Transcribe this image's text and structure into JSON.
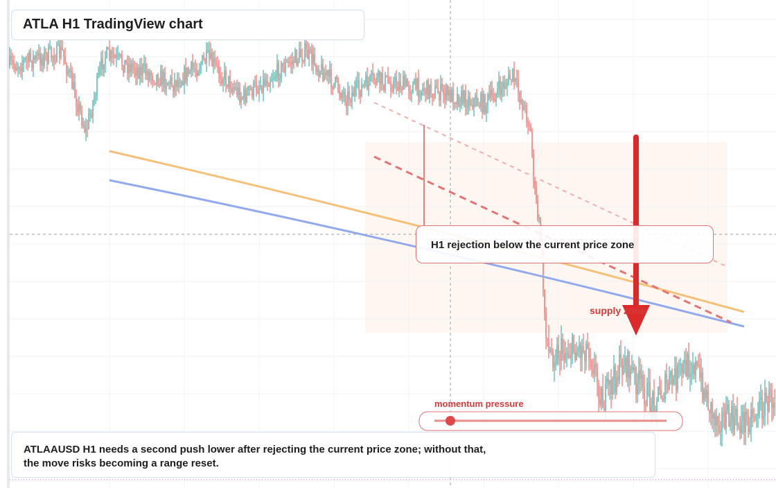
{
  "header": {
    "title": "ATLA H1 TradingView chart"
  },
  "annotations": {
    "zone_label": "H1 rejection below the current price zone",
    "supply": "supply zone",
    "momentum": "momentum pressure"
  },
  "caption": {
    "line1": "ATLAAUSD H1 needs a second push lower after rejecting the current price zone; without that,",
    "line2": "the move risks becoming a range reset."
  }
}
